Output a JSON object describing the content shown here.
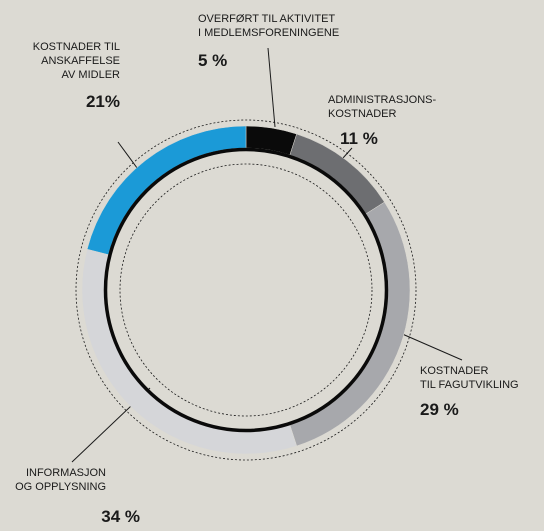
{
  "chart_data": {
    "type": "donut",
    "categories": [
      [
        "OVERFØRT TIL AKTIVITET",
        "I MEDLEMSFORENINGENE"
      ],
      [
        "ADMINISTRASJONS-",
        "KOSTNADER"
      ],
      [
        "KOSTNADER",
        "TIL FAGUTVIKLING"
      ],
      [
        "INFORMASJON",
        "OG OPPLYSNING"
      ],
      [
        "KOSTNADER TIL",
        "ANSKAFFELSE",
        "AV MIDLER"
      ]
    ],
    "values": [
      5,
      11,
      29,
      34,
      21
    ],
    "value_labels": [
      "5 %",
      "11 %",
      "29 %",
      "34 %",
      "21%"
    ],
    "colors": [
      "#0a0a0a",
      "#6d6e71",
      "#a7a8ac",
      "#d5d6d9",
      "#1b9ad7"
    ]
  }
}
